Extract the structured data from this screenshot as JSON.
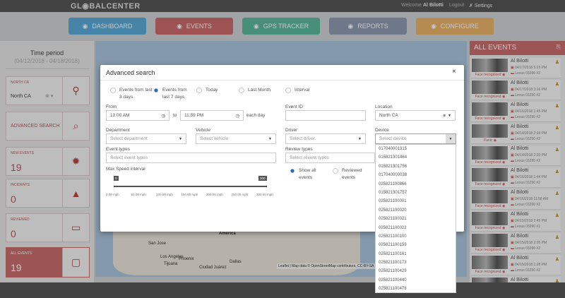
{
  "header": {
    "logo": "GL◉BALCENTER",
    "welcome_prefix": "Welcome",
    "user": "Al Bilotti",
    "logout": "Logout",
    "settings": "Settings"
  },
  "nav": [
    {
      "label": "DASHBOARD",
      "icon": "dashboard-icon",
      "color": "#5aa9d6"
    },
    {
      "label": "EVENTS",
      "icon": "warning-icon",
      "color": "#c96b6b"
    },
    {
      "label": "GPS TRACKER",
      "icon": "map-pin-icon",
      "color": "#5cb89a"
    },
    {
      "label": "REPORTS",
      "icon": "chart-icon",
      "color": "#8f9ab0"
    },
    {
      "label": "CONFIGURE",
      "icon": "sitemap-icon",
      "color": "#e8b36a"
    }
  ],
  "left": {
    "time_period_title": "Time period",
    "time_period_range": "(04/12/2018 - 04/18/2018)",
    "location_label": "NORTH CA",
    "location_value": "North CA",
    "advanced_search": "ADVANCED SEARCH",
    "new_events": {
      "label": "NEW EVENTS",
      "count": "19"
    },
    "incidents": {
      "label": "INCIDENTS",
      "count": "0"
    },
    "reviewed": {
      "label": "REVIEWED",
      "count": "0"
    },
    "all_events": {
      "label": "ALL EVENTS",
      "count": "19"
    }
  },
  "map": {
    "labels": [
      "America",
      "San Jose",
      "Los Angeles",
      "Phoenix",
      "Tijuana",
      "Ciudad Juárez",
      "Dallas"
    ],
    "attribution": "Leaflet | Map data © OpenStreetMap contributors, CC-BY-SA"
  },
  "events_panel": {
    "title": "ALL EVENTS",
    "events": [
      {
        "name": "Al Bilotti",
        "date": "04/17/2018 5:23 PM",
        "vehicle": "Lexus 03290 #2",
        "type": "Face recognized"
      },
      {
        "name": "Al Bilotti",
        "date": "04/17/2018 3:16 PM",
        "vehicle": "Lexus 03290 #2",
        "type": "Face recognized"
      },
      {
        "name": "Al Bilotti",
        "date": "04/16/2018 1:45 PM",
        "vehicle": "Lexus 03290 #2",
        "type": "Face recognized"
      },
      {
        "name": "Al Bilotti",
        "date": "04/14/2018 2:34 PM",
        "vehicle": "Lexus 03290 #2",
        "type": "Panic"
      },
      {
        "name": "Al Bilotti",
        "date": "04/14/2018 2:20 PM",
        "vehicle": "Lexus 03290 #2",
        "type": "Face recognized"
      },
      {
        "name": "Al Bilotti",
        "date": "04/16/2018 1:44 PM",
        "vehicle": "Lexus 03290 #2",
        "type": "Face recognized"
      },
      {
        "name": "Al Bilotti",
        "date": "04/16/2018 11:58 AM",
        "vehicle": "Lexus 03290 #2",
        "type": "Face recognized"
      },
      {
        "name": "Al Bilotti",
        "date": "04/15/2018 2:45 PM",
        "vehicle": "Lexus 03290 #2",
        "type": "Face recognized"
      },
      {
        "name": "Al Bilotti",
        "date": "04/15/2018 2:35 PM",
        "vehicle": "Lexus 03290 #2",
        "type": "Face recognized"
      },
      {
        "name": "Al Bilotti",
        "date": "04/15/2018 1:28 PM",
        "vehicle": "Lexus 03290 #2",
        "type": "Face recognized"
      },
      {
        "name": "Al Bilotti",
        "date": "",
        "vehicle": "",
        "type": ""
      }
    ]
  },
  "modal": {
    "title": "Advanced search",
    "close": "×",
    "periods": [
      {
        "label": "Events from last 3 days",
        "selected": false
      },
      {
        "label": "Events from last 7 days",
        "selected": true
      },
      {
        "label": "Today",
        "selected": false
      },
      {
        "label": "Last Month",
        "selected": false
      },
      {
        "label": "Interval",
        "selected": false
      }
    ],
    "from_label": "From",
    "from_value": "12:00 AM",
    "to_label": "to",
    "to_value": "11:59 PM",
    "each_day": "each day",
    "event_id_label": "Event ID",
    "event_id_value": "",
    "location_label": "Location",
    "location_value": "North CA",
    "department_label": "Department",
    "department_placeholder": "Select department",
    "vehicle_label": "Vehicle",
    "vehicle_placeholder": "Select vehicle",
    "driver_label": "Driver",
    "driver_placeholder": "Select driver",
    "device_label": "Device",
    "device_placeholder": "Select device",
    "event_types_label": "Event types",
    "event_types_placeholder": "Select event types",
    "review_types_label": "Review types",
    "review_types_placeholder": "Select review types",
    "review_options": [
      {
        "label": "Show all events",
        "selected": true
      },
      {
        "label": "Reviewed events",
        "selected": false
      }
    ],
    "speed_label": "Max Speed interval",
    "speed_min": "0",
    "speed_max": "300",
    "speed_ticks": [
      "0.00 mph",
      "50.00 mph",
      "100.00 mph",
      "150.00 mph",
      "200.00 mph",
      "250.00 mph",
      "300.00 mph"
    ],
    "device_options": [
      "017040001315",
      "015821301464",
      "015821301756",
      "017040000038",
      "025821100866",
      "015821301757",
      "025821100001",
      "025821100020",
      "025821100021",
      "025821100022",
      "025821100100",
      "025821100159",
      "025821100161",
      "025821100173",
      "025821100429",
      "025821100440",
      "025821100478"
    ]
  }
}
